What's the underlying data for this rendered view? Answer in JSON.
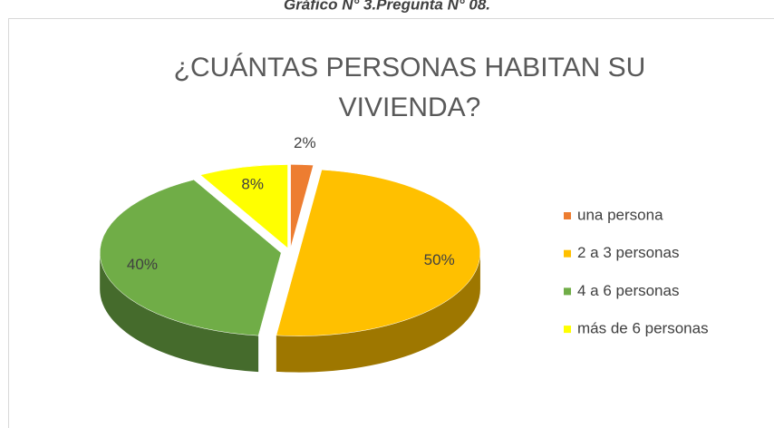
{
  "caption": "Gráfico N° 3.Pregunta N° 08.",
  "chart_data": {
    "type": "pie3d",
    "title": [
      "¿CUÁNTAS PERSONAS HABITAN SU",
      "VIVIENDA?"
    ],
    "categories": [
      "una persona",
      "2 a 3 personas",
      "4 a 6 personas",
      "más de 6 personas"
    ],
    "values": [
      2,
      50,
      40,
      8
    ],
    "value_labels": [
      "2%",
      "50%",
      "40%",
      "8%"
    ],
    "colors": [
      "#ED7D31",
      "#FFC000",
      "#70AD47",
      "#FFFF00"
    ],
    "legend": "right"
  }
}
